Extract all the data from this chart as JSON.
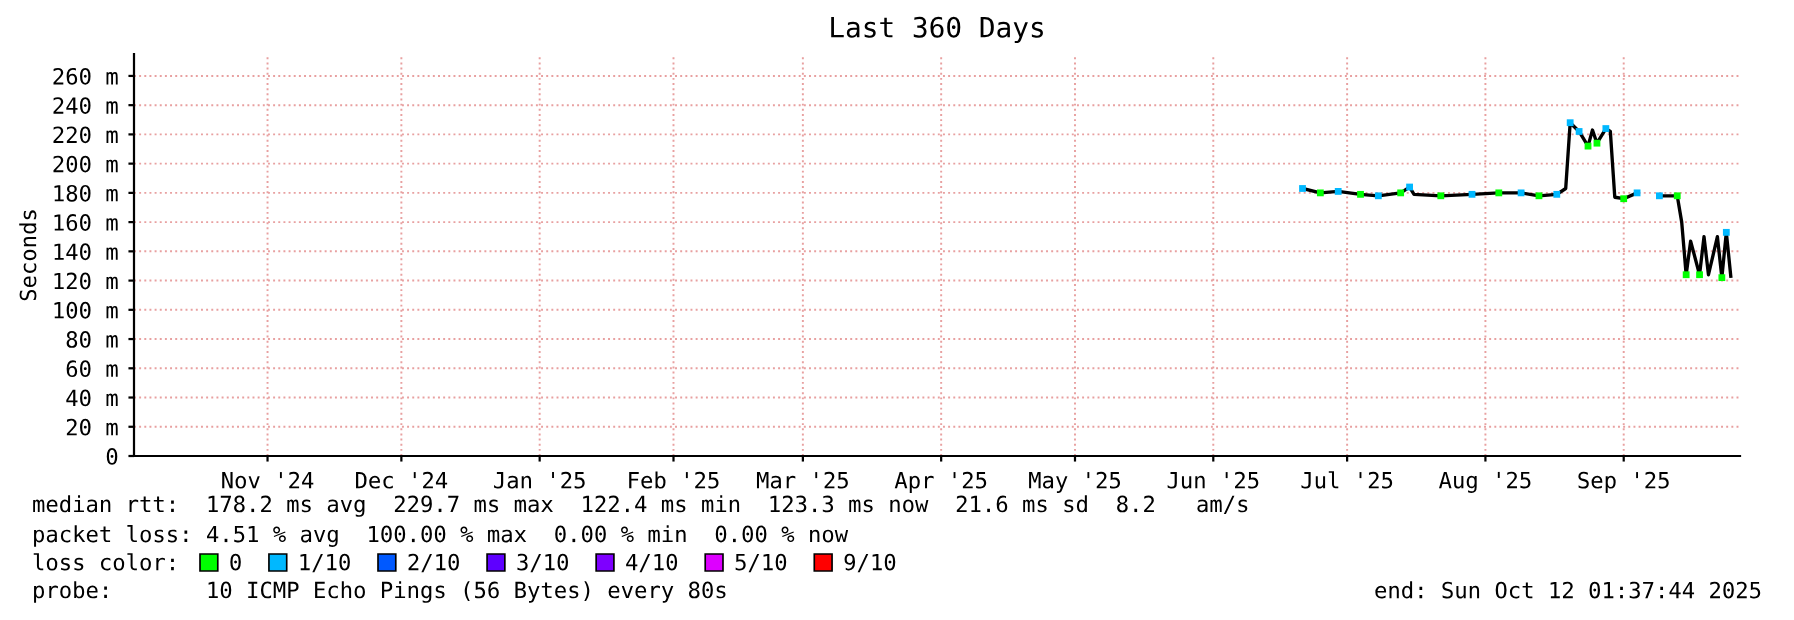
{
  "chart_data": {
    "type": "line",
    "title": "Last 360 Days",
    "ylabel": "Seconds",
    "xlim": [
      "2024-10-17T01:37",
      "2025-10-12T01:37"
    ],
    "xticks": [
      {
        "value": "2024-11-16",
        "label": "Nov '24"
      },
      {
        "value": "2024-12-16",
        "label": "Dec '24"
      },
      {
        "value": "2025-01-16",
        "label": "Jan '25"
      },
      {
        "value": "2025-02-15",
        "label": "Feb '25"
      },
      {
        "value": "2025-03-16",
        "label": "Mar '25"
      },
      {
        "value": "2025-04-16",
        "label": "Apr '25"
      },
      {
        "value": "2025-05-16",
        "label": "May '25"
      },
      {
        "value": "2025-06-16",
        "label": "Jun '25"
      },
      {
        "value": "2025-07-16",
        "label": "Jul '25"
      },
      {
        "value": "2025-08-16",
        "label": "Aug '25"
      },
      {
        "value": "2025-09-16",
        "label": "Sep '25"
      }
    ],
    "ylim": [
      0,
      275
    ],
    "yticks": [
      0,
      {
        "value": 20,
        "label": "20 m"
      },
      {
        "value": 40,
        "label": "40 m"
      },
      {
        "value": 60,
        "label": "60 m"
      },
      {
        "value": 80,
        "label": "80 m"
      },
      {
        "value": 100,
        "label": "100 m"
      },
      {
        "value": 120,
        "label": "120 m"
      },
      {
        "value": 140,
        "label": "140 m"
      },
      {
        "value": 160,
        "label": "160 m"
      },
      {
        "value": 180,
        "label": "180 m"
      },
      {
        "value": 200,
        "label": "200 m"
      },
      {
        "value": 220,
        "label": "220 m"
      },
      {
        "value": 240,
        "label": "240 m"
      },
      {
        "value": 260,
        "label": "260 m"
      }
    ],
    "grid": true,
    "legend": "bottom",
    "legend_title": "loss color:",
    "series": [
      {
        "color": "#000000",
        "x": [
          "2025-07-06",
          "2025-07-10",
          "2025-07-14",
          "2025-07-19",
          "2025-07-23",
          "2025-07-28",
          "2025-07-30",
          "2025-07-31",
          "2025-08-06",
          "2025-08-13",
          "2025-08-19",
          "2025-08-24",
          "2025-08-28",
          "2025-09-01",
          "2025-09-03",
          "2025-09-04",
          "2025-09-06",
          "2025-09-08",
          "2025-09-09",
          "2025-09-10",
          "2025-09-12",
          "2025-09-13",
          "2025-09-14",
          "2025-09-16",
          "2025-09-19",
          "2025-09-20",
          "2025-09-24",
          "2025-09-28",
          "2025-09-29",
          "2025-09-30",
          "2025-10-01",
          "2025-10-03",
          "2025-10-04",
          "2025-10-05",
          "2025-10-07",
          "2025-10-08",
          "2025-10-09",
          "2025-10-10"
        ],
        "values": [
          183,
          180,
          181,
          179,
          178,
          180,
          184,
          179,
          178,
          179,
          180,
          180,
          178,
          179,
          183,
          228,
          222,
          212,
          223,
          214,
          224,
          222,
          177,
          176,
          180,
          null,
          178,
          178,
          160,
          124,
          147,
          124,
          150,
          124,
          150,
          122,
          153,
          123
        ]
      },
      {
        "type": "scatter",
        "name": "0",
        "color": "#00ff00",
        "x": [
          "2025-07-10",
          "2025-07-19",
          "2025-07-28",
          "2025-08-06",
          "2025-08-19",
          "2025-08-28",
          "2025-09-08",
          "2025-09-10",
          "2025-09-16",
          "2025-09-28",
          "2025-09-30",
          "2025-10-03",
          "2025-10-08"
        ],
        "values": [
          180,
          179,
          180,
          178,
          180,
          178,
          212,
          214,
          176,
          178,
          124,
          124,
          122
        ]
      },
      {
        "type": "scatter",
        "name": "1/10",
        "color": "#00b8ff",
        "x": [
          "2025-07-06",
          "2025-07-14",
          "2025-07-23",
          "2025-07-30",
          "2025-08-13",
          "2025-08-24",
          "2025-09-01",
          "2025-09-04",
          "2025-09-06",
          "2025-09-12",
          "2025-09-19",
          "2025-09-24",
          "2025-10-09"
        ],
        "values": [
          183,
          181,
          178,
          184,
          179,
          180,
          179,
          228,
          222,
          224,
          180,
          178,
          153
        ]
      },
      {
        "type": "scatter",
        "name": "2/10",
        "color": "#0059ff"
      },
      {
        "type": "scatter",
        "name": "3/10",
        "color": "#5e00ff"
      },
      {
        "type": "scatter",
        "name": "4/10",
        "color": "#7e00ff"
      },
      {
        "type": "scatter",
        "name": "5/10",
        "color": "#dd00ff"
      },
      {
        "type": "scatter",
        "name": "9/10",
        "color": "#ff0000"
      }
    ],
    "annotations": [
      "median rtt:  178.2 ms avg  229.7 ms max  122.4 ms min  123.3 ms now  21.6 ms sd  8.2   am/s",
      "packet loss: 4.51 % avg  100.00 % max  0.00 % min  0.00 % now",
      "probe:       10 ICMP Echo Pings (56 Bytes) every 80s",
      "end: Sun Oct 12 01:37:44 2025"
    ]
  }
}
